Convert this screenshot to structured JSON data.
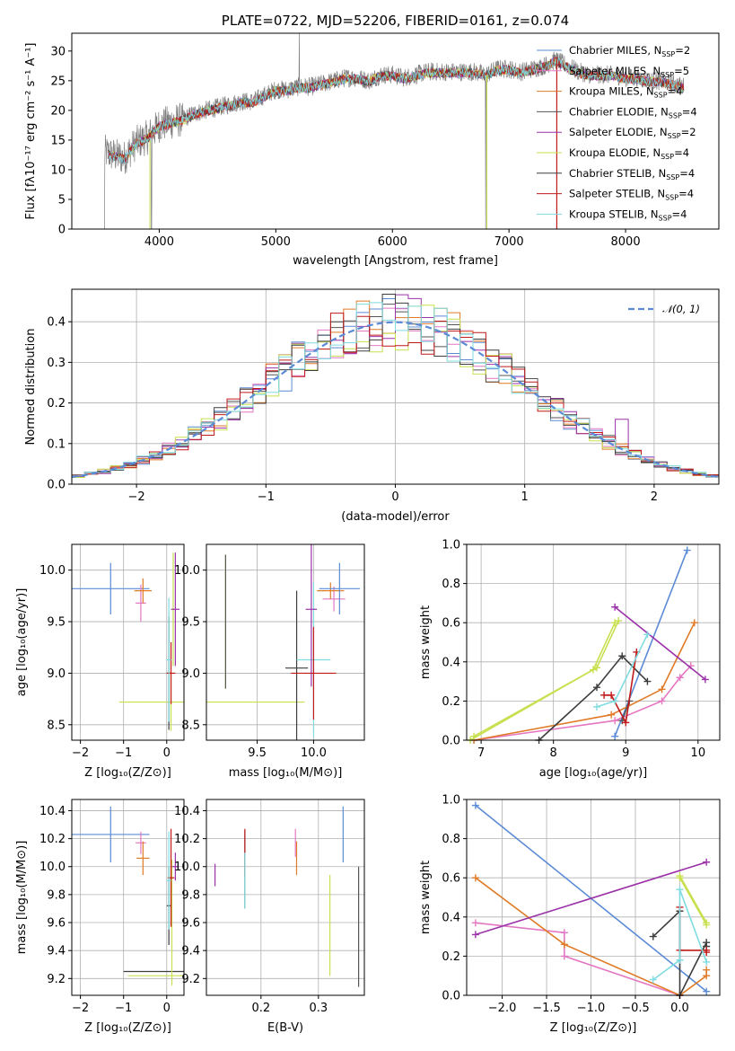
{
  "colors": {
    "c_miles": "#5b8bd6",
    "s_miles": "#e377c2",
    "k_miles": "#e07b27",
    "c_elodie": "#555555",
    "s_elodie": "#9b32a8",
    "k_elodie": "#c7e04f",
    "c_stelib": "#3d3d3d",
    "s_stelib": "#c01a1a",
    "k_stelib": "#7fdce0",
    "normal": "#5b8bd6",
    "grid": "#b0b0b0"
  },
  "chart_data": [
    {
      "id": "spectrum",
      "type": "line",
      "title": "PLATE=0722, MJD=52206, FIBERID=0161, z=0.074",
      "xlabel": "wavelength [Angstrom, rest frame]",
      "ylabel": "Flux [fλ10⁻¹⁷ erg cm⁻² s⁻¹ A⁻¹]",
      "xlim": [
        3250,
        8800
      ],
      "ylim": [
        0,
        33
      ],
      "xticks": [
        4000,
        5000,
        6000,
        7000,
        8000
      ],
      "yticks": [
        0,
        5,
        10,
        15,
        20,
        25,
        30
      ],
      "grid": false,
      "legend": "right",
      "data_spectrum": {
        "x": [
          3530,
          3600,
          3700,
          3800,
          3900,
          4000,
          4100,
          4200,
          4300,
          4400,
          4500,
          4600,
          4700,
          4800,
          4900,
          5000,
          5100,
          5200,
          5300,
          5400,
          5500,
          5600,
          5700,
          5800,
          5900,
          6000,
          6100,
          6200,
          6300,
          6400,
          6500,
          6600,
          6700,
          6800,
          6900,
          7000,
          7100,
          7200,
          7300,
          7400,
          7500,
          7600,
          7700,
          7800,
          7900,
          8000,
          8100,
          8200,
          8300,
          8400,
          8500
        ],
        "y": [
          13.0,
          12.5,
          12.0,
          14.5,
          15.5,
          17.5,
          18.0,
          18.5,
          19.5,
          20.0,
          20.5,
          21.0,
          21.5,
          21.5,
          22.5,
          23.5,
          23.5,
          24.0,
          24.0,
          24.5,
          25.0,
          25.5,
          25.5,
          25.0,
          26.0,
          26.0,
          25.5,
          26.0,
          26.5,
          26.5,
          26.5,
          26.5,
          26.5,
          26.0,
          27.0,
          27.0,
          26.5,
          27.0,
          27.5,
          28.5,
          27.5,
          26.5,
          26.0,
          26.0,
          26.0,
          25.5,
          25.5,
          25.0,
          25.0,
          24.5,
          24.0
        ]
      },
      "series": [
        {
          "name": "Chabrier MILES, N",
          "sub": "SSP",
          "suffix": "=2",
          "color_key": "c_miles"
        },
        {
          "name": "Salpeter MILES, N",
          "sub": "SSP",
          "suffix": "=5",
          "color_key": "s_miles"
        },
        {
          "name": "Kroupa MILES, N",
          "sub": "SSP",
          "suffix": "=4",
          "color_key": "k_miles"
        },
        {
          "name": "Chabrier ELODIE, N",
          "sub": "SSP",
          "suffix": "=4",
          "color_key": "c_elodie"
        },
        {
          "name": "Salpeter ELODIE, N",
          "sub": "SSP",
          "suffix": "=2",
          "color_key": "s_elodie"
        },
        {
          "name": "Kroupa ELODIE, N",
          "sub": "SSP",
          "suffix": "=4",
          "color_key": "k_elodie"
        },
        {
          "name": "Chabrier STELIB, N",
          "sub": "SSP",
          "suffix": "=4",
          "color_key": "c_stelib"
        },
        {
          "name": "Salpeter STELIB, N",
          "sub": "SSP",
          "suffix": "=4",
          "color_key": "s_stelib"
        },
        {
          "name": "Kroupa STELIB, N",
          "sub": "SSP",
          "suffix": "=4",
          "color_key": "k_stelib"
        }
      ]
    },
    {
      "id": "residuals",
      "type": "line",
      "xlabel": "(data-model)/error",
      "ylabel": "Normed distribution",
      "xlim": [
        -2.5,
        2.5
      ],
      "ylim": [
        0,
        0.48
      ],
      "xticks": [
        -2,
        -1,
        0,
        1,
        2
      ],
      "yticks": [
        0.0,
        0.1,
        0.2,
        0.3,
        0.4
      ],
      "grid": true,
      "legend": "top-right",
      "normal_label": "𝒩(0, 1)",
      "bins": [
        -2.5,
        2.5,
        50
      ]
    },
    {
      "id": "age_vs_Z",
      "type": "scatter",
      "xlabel": "Z [log₁₀(Z/Z⊙)]",
      "ylabel": "age  [log₁₀(age/yr)]",
      "xlim": [
        -2.2,
        0.4
      ],
      "ylim": [
        8.35,
        10.25
      ],
      "xticks": [
        -2,
        -1,
        0
      ],
      "yticks": [
        8.5,
        9.0,
        9.5,
        10.0
      ],
      "grid": true,
      "points": [
        {
          "c": "c_miles",
          "x": -1.3,
          "y": 9.82,
          "xerr": 0.9,
          "yerr": 0.25
        },
        {
          "c": "s_miles",
          "x": -0.6,
          "y": 9.68,
          "xerr": 0.12,
          "yerr": 0.18
        },
        {
          "c": "k_miles",
          "x": -0.55,
          "y": 9.8,
          "xerr": 0.2,
          "yerr": 0.12
        },
        {
          "c": "k_elodie",
          "x": 0.1,
          "y": 8.72,
          "xerr": 1.2,
          "yerr": 0.28
        },
        {
          "c": "k_elodie",
          "x": 0.15,
          "y": 9.62,
          "xerr": 0.02,
          "yerr": 0.55
        },
        {
          "c": "s_elodie",
          "x": 0.2,
          "y": 9.62,
          "xerr": 0.1,
          "yerr": 0.55
        },
        {
          "c": "c_stelib",
          "x": 0.05,
          "y": 9.0,
          "xerr": 0.05,
          "yerr": 0.55
        },
        {
          "c": "s_stelib",
          "x": 0.1,
          "y": 9.0,
          "xerr": 0.1,
          "yerr": 0.3
        },
        {
          "c": "k_stelib",
          "x": 0.05,
          "y": 9.13,
          "xerr": 0.05,
          "yerr": 0.6
        }
      ]
    },
    {
      "id": "age_vs_mass",
      "type": "scatter",
      "xlabel": "mass [log₁₀(M/M⊙)]",
      "ylabel": "",
      "xlim": [
        9.05,
        10.45
      ],
      "ylim": [
        8.35,
        10.25
      ],
      "xticks": [
        9.5,
        10.0
      ],
      "yticks": [
        8.5,
        9.0,
        9.5,
        10.0
      ],
      "grid": true,
      "points": [
        {
          "c": "k_elodie",
          "x": 9.22,
          "y": 8.72,
          "xerr": 0.7,
          "yerr": 0.0
        },
        {
          "c": "k_elodie",
          "x": 9.22,
          "y": 9.5,
          "xerr": 0.0,
          "yerr": 0.65
        },
        {
          "c": "c_elodie",
          "x": 9.22,
          "y": 9.5,
          "xerr": 0.0,
          "yerr": 0.65
        },
        {
          "c": "c_stelib",
          "x": 9.85,
          "y": 9.05,
          "xerr": 0.1,
          "yerr": 0.75
        },
        {
          "c": "k_stelib",
          "x": 10.0,
          "y": 9.13,
          "xerr": 0.15,
          "yerr": 0.75
        },
        {
          "c": "s_elodie",
          "x": 9.98,
          "y": 9.62,
          "xerr": 0.05,
          "yerr": 0.75
        },
        {
          "c": "s_stelib",
          "x": 10.0,
          "y": 9.0,
          "xerr": 0.2,
          "yerr": 0.45
        },
        {
          "c": "s_miles",
          "x": 10.18,
          "y": 9.72,
          "xerr": 0.1,
          "yerr": 0.12
        },
        {
          "c": "k_miles",
          "x": 10.15,
          "y": 9.8,
          "xerr": 0.12,
          "yerr": 0.08
        },
        {
          "c": "c_miles",
          "x": 10.23,
          "y": 9.82,
          "xerr": 0.18,
          "yerr": 0.25
        }
      ]
    },
    {
      "id": "massweight_vs_age",
      "type": "line",
      "xlabel": "age  [log₁₀(age/yr)]",
      "ylabel": "mass weight",
      "xlim": [
        6.8,
        10.3
      ],
      "ylim": [
        0,
        1
      ],
      "xticks": [
        7,
        8,
        9,
        10
      ],
      "yticks": [
        0.0,
        0.2,
        0.4,
        0.6,
        0.8,
        1.0
      ],
      "grid": true,
      "series": [
        {
          "c": "c_miles",
          "x": [
            8.85,
            9.85
          ],
          "y": [
            0.02,
            0.97
          ]
        },
        {
          "c": "s_miles",
          "x": [
            6.9,
            8.85,
            9.5,
            9.75,
            9.9
          ],
          "y": [
            0.0,
            0.1,
            0.2,
            0.32,
            0.38
          ]
        },
        {
          "c": "k_miles",
          "x": [
            6.9,
            8.8,
            9.5,
            9.95
          ],
          "y": [
            0.0,
            0.13,
            0.26,
            0.6
          ]
        },
        {
          "c": "c_elodie",
          "x": [
            8.95,
            9.05
          ],
          "y": [
            0.1,
            0.2
          ]
        },
        {
          "c": "s_elodie",
          "x": [
            8.85,
            10.1
          ],
          "y": [
            0.68,
            0.31
          ]
        },
        {
          "c": "k_elodie",
          "x": [
            6.85,
            8.55,
            8.85
          ],
          "y": [
            0.0,
            0.36,
            0.6
          ]
        },
        {
          "c": "k_elodie",
          "x": [
            6.9,
            8.6,
            8.9
          ],
          "y": [
            0.02,
            0.37,
            0.61
          ]
        },
        {
          "c": "c_stelib",
          "x": [
            7.8,
            8.6,
            8.95,
            9.3
          ],
          "y": [
            0.0,
            0.27,
            0.43,
            0.3
          ]
        },
        {
          "c": "s_stelib",
          "x": [
            8.7,
            8.8,
            9.0,
            9.15
          ],
          "y": [
            0.23,
            0.23,
            0.09,
            0.45
          ]
        },
        {
          "c": "k_stelib",
          "x": [
            8.6,
            8.85,
            9.3
          ],
          "y": [
            0.17,
            0.2,
            0.54
          ]
        }
      ]
    },
    {
      "id": "mass_vs_Z",
      "type": "scatter",
      "xlabel": "Z [log₁₀(Z/Z⊙)]",
      "ylabel": "mass [log₁₀(M/M⊙)]",
      "xlim": [
        -2.2,
        0.4
      ],
      "ylim": [
        9.08,
        10.48
      ],
      "xticks": [
        -2,
        -1,
        0
      ],
      "yticks": [
        9.2,
        9.4,
        9.6,
        9.8,
        10.0,
        10.2,
        10.4
      ],
      "grid": true,
      "points": [
        {
          "c": "c_miles",
          "x": -1.3,
          "y": 10.23,
          "xerr": 0.9,
          "yerr": 0.2
        },
        {
          "c": "s_miles",
          "x": -0.6,
          "y": 10.17,
          "xerr": 0.12,
          "yerr": 0.08
        },
        {
          "c": "k_miles",
          "x": -0.55,
          "y": 10.06,
          "xerr": 0.15,
          "yerr": 0.12
        },
        {
          "c": "c_stelib",
          "x": 0.0,
          "y": 9.25,
          "xerr": 1.0,
          "yerr": 0.0
        },
        {
          "c": "k_elodie",
          "x": 0.1,
          "y": 9.22,
          "xerr": 1.0,
          "yerr": 0.0
        },
        {
          "c": "k_elodie",
          "x": 0.12,
          "y": 9.6,
          "xerr": 0.0,
          "yerr": 0.45
        },
        {
          "c": "c_stelib",
          "x": 0.05,
          "y": 9.72,
          "xerr": 0.05,
          "yerr": 0.28
        },
        {
          "c": "s_stelib",
          "x": 0.1,
          "y": 9.92,
          "xerr": 0.08,
          "yerr": 0.35
        },
        {
          "c": "s_elodie",
          "x": 0.2,
          "y": 10.0,
          "xerr": 0.08,
          "yerr": 0.1
        },
        {
          "c": "k_stelib",
          "x": 0.05,
          "y": 9.9,
          "xerr": 0.05,
          "yerr": 0.35
        }
      ]
    },
    {
      "id": "mass_vs_EBV",
      "type": "scatter",
      "xlabel": "E(B-V)",
      "ylabel": "",
      "xlim": [
        0.105,
        0.38
      ],
      "ylim": [
        9.08,
        10.48
      ],
      "xticks": [
        0.2,
        0.3
      ],
      "yticks": [
        9.2,
        9.4,
        9.6,
        9.8,
        10.0,
        10.2,
        10.4
      ],
      "grid": true,
      "points": [
        {
          "c": "s_elodie",
          "x": 0.12,
          "y": 9.94,
          "xerr": 0.0,
          "yerr": 0.08
        },
        {
          "c": "c_stelib",
          "x": 0.172,
          "y": 9.98,
          "xerr": 0.0,
          "yerr": 0.28
        },
        {
          "c": "s_stelib",
          "x": 0.172,
          "y": 10.1,
          "xerr": 0.0,
          "yerr": 0.17
        },
        {
          "c": "k_stelib",
          "x": 0.172,
          "y": 9.9,
          "xerr": 0.0,
          "yerr": 0.2
        },
        {
          "c": "s_miles",
          "x": 0.26,
          "y": 10.17,
          "xerr": 0.0,
          "yerr": 0.1
        },
        {
          "c": "k_miles",
          "x": 0.262,
          "y": 10.06,
          "xerr": 0.0,
          "yerr": 0.12
        },
        {
          "c": "k_elodie",
          "x": 0.32,
          "y": 9.58,
          "xerr": 0.0,
          "yerr": 0.36
        },
        {
          "c": "c_miles",
          "x": 0.343,
          "y": 10.23,
          "xerr": 0.0,
          "yerr": 0.2
        },
        {
          "c": "c_elodie",
          "x": 0.37,
          "y": 9.57,
          "xerr": 0.0,
          "yerr": 0.43
        }
      ]
    },
    {
      "id": "massweight_vs_Z",
      "type": "line",
      "xlabel": "Z [log₁₀(Z/Z⊙)]",
      "ylabel": "mass weight",
      "xlim": [
        -2.4,
        0.45
      ],
      "ylim": [
        0,
        1
      ],
      "xticks": [
        -2.0,
        -1.5,
        -1.0,
        -0.5,
        0.0
      ],
      "yticks": [
        0.0,
        0.2,
        0.4,
        0.6,
        0.8,
        1.0
      ],
      "grid": true,
      "series": [
        {
          "c": "c_miles",
          "x": [
            -2.3,
            0.3
          ],
          "y": [
            0.97,
            0.02
          ]
        },
        {
          "c": "s_miles",
          "x": [
            -2.3,
            -1.3,
            -1.3,
            0.0
          ],
          "y": [
            0.37,
            0.32,
            0.2,
            0.0
          ]
        },
        {
          "c": "k_miles",
          "x": [
            -2.3,
            -1.3,
            0.0,
            0.3,
            0.3
          ],
          "y": [
            0.6,
            0.26,
            0.0,
            0.1,
            0.13
          ]
        },
        {
          "c": "s_elodie",
          "x": [
            -2.3,
            0.3
          ],
          "y": [
            0.31,
            0.68
          ]
        },
        {
          "c": "k_elodie",
          "x": [
            0.0,
            0.3
          ],
          "y": [
            0.6,
            0.36
          ]
        },
        {
          "c": "k_elodie",
          "x": [
            0.0,
            0.3
          ],
          "y": [
            0.61,
            0.37
          ]
        },
        {
          "c": "c_stelib",
          "x": [
            -0.3,
            0.0,
            0.0,
            0.3,
            0.3
          ],
          "y": [
            0.3,
            0.43,
            0.0,
            0.27,
            0.25
          ]
        },
        {
          "c": "s_stelib",
          "x": [
            0.0,
            0.0,
            0.3,
            0.3
          ],
          "y": [
            0.45,
            0.23,
            0.23,
            0.22
          ]
        },
        {
          "c": "k_stelib",
          "x": [
            -0.3,
            0.0,
            0.0,
            0.3
          ],
          "y": [
            0.08,
            0.18,
            0.54,
            0.17
          ]
        }
      ]
    }
  ]
}
